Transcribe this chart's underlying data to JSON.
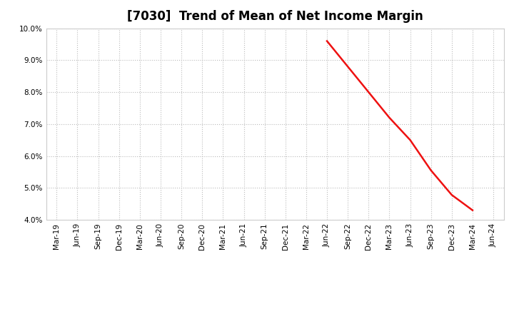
{
  "title": "[7030]  Trend of Mean of Net Income Margin",
  "ylim": [
    0.04,
    0.1
  ],
  "yticks": [
    0.04,
    0.05,
    0.06,
    0.07,
    0.08,
    0.09,
    0.1
  ],
  "ytick_labels": [
    "4.0%",
    "5.0%",
    "6.0%",
    "7.0%",
    "8.0%",
    "9.0%",
    "10.0%"
  ],
  "series_3yr": {
    "x": [
      "Jun-22",
      "Sep-22",
      "Dec-22",
      "Mar-23",
      "Jun-23",
      "Sep-23",
      "Dec-23",
      "Mar-24"
    ],
    "y": [
      0.096,
      0.088,
      0.08,
      0.072,
      0.065,
      0.0555,
      0.0478,
      0.043
    ],
    "color": "#EE1111",
    "linewidth": 1.8
  },
  "series_5yr": {
    "color": "#1111CC",
    "linewidth": 1.8
  },
  "series_7yr": {
    "color": "#00BBCC",
    "linewidth": 1.8
  },
  "series_10yr": {
    "color": "#008800",
    "linewidth": 1.8
  },
  "xtick_labels": [
    "Mar-19",
    "Jun-19",
    "Sep-19",
    "Dec-19",
    "Mar-20",
    "Jun-20",
    "Sep-20",
    "Dec-20",
    "Mar-21",
    "Jun-21",
    "Sep-21",
    "Dec-21",
    "Mar-22",
    "Jun-22",
    "Sep-22",
    "Dec-22",
    "Mar-23",
    "Jun-23",
    "Sep-23",
    "Dec-23",
    "Mar-24",
    "Jun-24"
  ],
  "background_color": "#FFFFFF",
  "plot_bg_color": "#FFFFFF",
  "grid_color": "#BBBBBB",
  "title_fontsize": 12,
  "tick_fontsize": 7.5,
  "legend_fontsize": 9
}
